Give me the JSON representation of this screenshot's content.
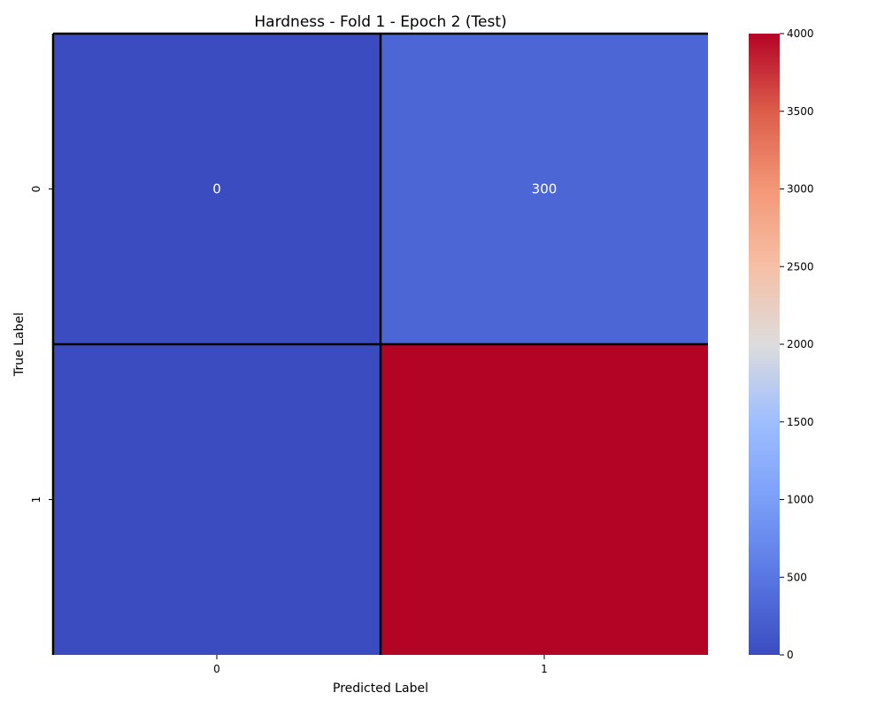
{
  "chart_data": {
    "type": "heatmap",
    "title": "Hardness - Fold 1 - Epoch 2 (Test)",
    "xlabel": "Predicted Label",
    "ylabel": "True Label",
    "x_categories": [
      "0",
      "1"
    ],
    "y_categories": [
      "0",
      "1"
    ],
    "values": [
      [
        0,
        300
      ],
      [
        0,
        4000
      ]
    ],
    "cell_annotations": [
      [
        "0",
        "300"
      ],
      [
        "",
        ""
      ]
    ],
    "colormap": "coolwarm",
    "vmin": 0,
    "vmax": 4000,
    "colorbar_ticks": [
      0,
      500,
      1000,
      1500,
      2000,
      2500,
      3000,
      3500,
      4000
    ],
    "cell_border_color": "#000000",
    "annotation_color": "#ffffff"
  }
}
